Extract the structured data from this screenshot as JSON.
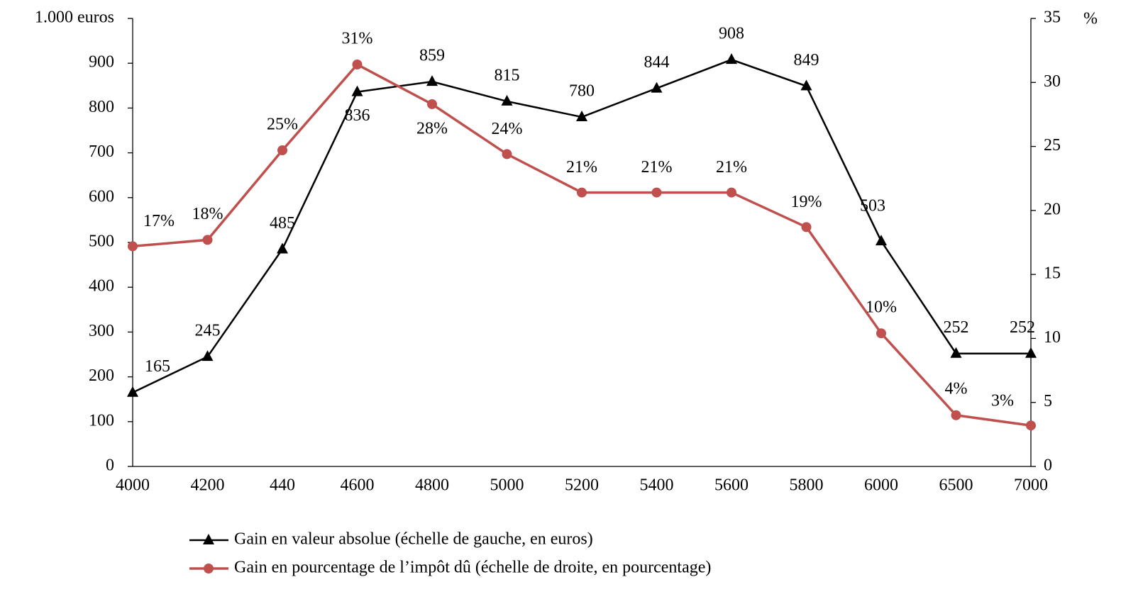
{
  "chart_data": {
    "type": "line",
    "categories": [
      "4000",
      "4200",
      "440",
      "4600",
      "4800",
      "5000",
      "5200",
      "5400",
      "5600",
      "5800",
      "6000",
      "6500",
      "7000"
    ],
    "series": [
      {
        "name": "Gain en valeur absolue (échelle de gauche, en euros)",
        "color": "#000000",
        "marker": "triangle",
        "values": [
          165,
          245,
          485,
          836,
          859,
          815,
          780,
          844,
          908,
          849,
          503,
          252,
          252
        ]
      },
      {
        "name": "Gain en pourcentage de l’impôt dû (échelle de droite, en pourcentage)",
        "color": "#c0504d",
        "marker": "circle",
        "axis": "y2",
        "values": [
          17.2,
          17.7,
          24.7,
          31.4,
          28.3,
          24.4,
          21.4,
          21.4,
          21.4,
          18.7,
          10.4,
          4.0,
          3.2
        ],
        "value_labels": [
          "17%",
          "18%",
          "25%",
          "31%",
          "28%",
          "24%",
          "21%",
          "21%",
          "21%",
          "19%",
          "10%",
          "4%",
          "3%"
        ]
      }
    ],
    "ylim": [
      0,
      1000
    ],
    "yticks": [
      0,
      100,
      200,
      300,
      400,
      500,
      600,
      700,
      800,
      900,
      {
        "value": 1000,
        "label": "1.000 euros"
      }
    ],
    "y2lim": [
      0,
      35
    ],
    "y2ticks": [
      0,
      5,
      10,
      15,
      20,
      25,
      30,
      35
    ],
    "y2_unit": "%",
    "grid": false
  }
}
